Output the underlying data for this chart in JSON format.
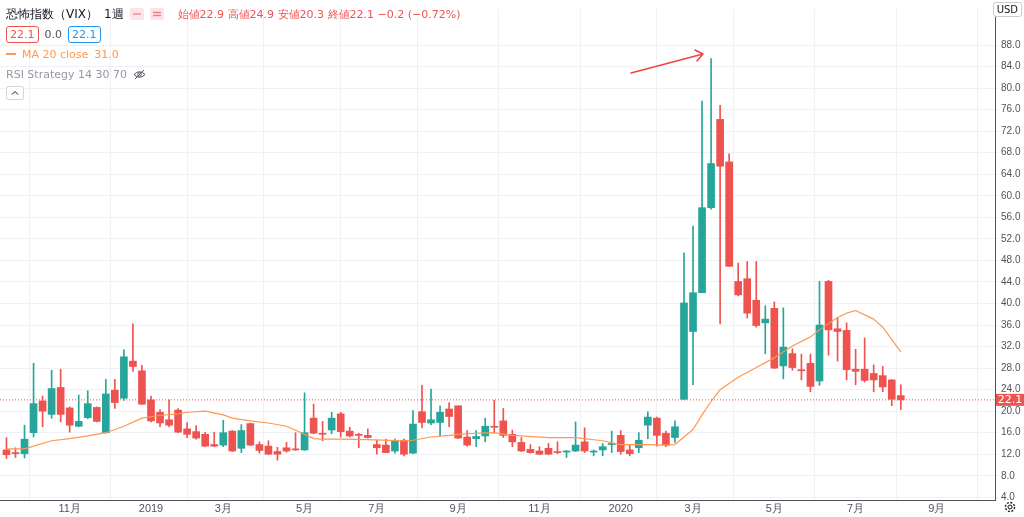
{
  "chart_data": {
    "type": "candlestick",
    "title": "恐怖指数（VIX）",
    "subtitle": "1週",
    "x": [
      "2018-09-17",
      "2018-09-24",
      "2018-10-01",
      "2018-10-08",
      "2018-10-15",
      "2018-10-22",
      "2018-10-29",
      "2018-11-05",
      "2018-11-12",
      "2018-11-19",
      "2018-11-26",
      "2018-12-03",
      "2018-12-10",
      "2018-12-17",
      "2018-12-24",
      "2018-12-31",
      "2019-01-07",
      "2019-01-14",
      "2019-01-21",
      "2019-01-28",
      "2019-02-04",
      "2019-02-11",
      "2019-02-18",
      "2019-02-25",
      "2019-03-04",
      "2019-03-11",
      "2019-03-18",
      "2019-03-25",
      "2019-04-01",
      "2019-04-08",
      "2019-04-15",
      "2019-04-22",
      "2019-04-29",
      "2019-05-06",
      "2019-05-13",
      "2019-05-20",
      "2019-05-27",
      "2019-06-03",
      "2019-06-10",
      "2019-06-17",
      "2019-06-24",
      "2019-07-01",
      "2019-07-08",
      "2019-07-15",
      "2019-07-22",
      "2019-07-29",
      "2019-08-05",
      "2019-08-12",
      "2019-08-19",
      "2019-08-26",
      "2019-09-02",
      "2019-09-09",
      "2019-09-16",
      "2019-09-23",
      "2019-09-30",
      "2019-10-07",
      "2019-10-14",
      "2019-10-21",
      "2019-10-28",
      "2019-11-04",
      "2019-11-11",
      "2019-11-18",
      "2019-11-25",
      "2019-12-02",
      "2019-12-09",
      "2019-12-16",
      "2019-12-23",
      "2019-12-30",
      "2020-01-06",
      "2020-01-13",
      "2020-01-20",
      "2020-01-27",
      "2020-02-03",
      "2020-02-10",
      "2020-02-17",
      "2020-02-24",
      "2020-03-02",
      "2020-03-09",
      "2020-03-16",
      "2020-03-23",
      "2020-03-30",
      "2020-04-06",
      "2020-04-13",
      "2020-04-20",
      "2020-04-27",
      "2020-05-04",
      "2020-05-11",
      "2020-05-18",
      "2020-05-25",
      "2020-06-01",
      "2020-06-08",
      "2020-06-15",
      "2020-06-22",
      "2020-06-29",
      "2020-07-06",
      "2020-07-13",
      "2020-07-20",
      "2020-07-27",
      "2020-08-03",
      "2020-08-10"
    ],
    "ohlc": [
      [
        12.8,
        15.1,
        11.2,
        11.9
      ],
      [
        12.3,
        13.2,
        11.4,
        12.1
      ],
      [
        12.1,
        17.4,
        11.3,
        14.8
      ],
      [
        16.0,
        28.9,
        15.2,
        21.4
      ],
      [
        21.9,
        22.8,
        17.1,
        20.0
      ],
      [
        19.4,
        27.6,
        18.7,
        24.2
      ],
      [
        24.4,
        27.8,
        18.0,
        19.4
      ],
      [
        20.6,
        20.8,
        16.1,
        17.4
      ],
      [
        17.2,
        23.0,
        17.1,
        18.1
      ],
      [
        18.8,
        23.8,
        18.6,
        21.4
      ],
      [
        20.7,
        20.8,
        18.0,
        18.1
      ],
      [
        16.0,
        25.9,
        15.9,
        23.2
      ],
      [
        23.9,
        25.9,
        20.5,
        21.6
      ],
      [
        22.4,
        31.4,
        22.0,
        30.1
      ],
      [
        29.3,
        36.2,
        27.4,
        28.3
      ],
      [
        27.5,
        28.5,
        21.2,
        21.3
      ],
      [
        22.1,
        22.8,
        18.0,
        18.2
      ],
      [
        19.8,
        20.3,
        17.1,
        17.8
      ],
      [
        18.4,
        22.1,
        17.1,
        17.4
      ],
      [
        20.2,
        20.5,
        16.0,
        16.1
      ],
      [
        16.7,
        17.9,
        15.1,
        15.7
      ],
      [
        16.2,
        17.3,
        14.8,
        15.0
      ],
      [
        15.7,
        16.1,
        13.4,
        13.5
      ],
      [
        13.8,
        16.1,
        13.4,
        13.5
      ],
      [
        13.7,
        18.3,
        13.4,
        16.0
      ],
      [
        16.3,
        16.4,
        12.5,
        12.6
      ],
      [
        13.1,
        17.5,
        12.3,
        16.4
      ],
      [
        17.7,
        17.8,
        13.6,
        13.7
      ],
      [
        13.8,
        14.3,
        12.2,
        12.7
      ],
      [
        13.5,
        14.5,
        11.9,
        12.0
      ],
      [
        12.5,
        13.3,
        10.9,
        12.0
      ],
      [
        13.2,
        14.2,
        12.4,
        12.6
      ],
      [
        13.0,
        16.0,
        12.7,
        12.8
      ],
      [
        12.8,
        23.4,
        12.7,
        16.0
      ],
      [
        18.7,
        21.3,
        15.8,
        15.9
      ],
      [
        15.9,
        18.1,
        14.5,
        15.7
      ],
      [
        16.5,
        19.8,
        15.8,
        18.7
      ],
      [
        19.5,
        19.8,
        15.2,
        16.2
      ],
      [
        16.3,
        17.0,
        15.2,
        15.4
      ],
      [
        15.7,
        15.9,
        13.2,
        15.5
      ],
      [
        15.5,
        16.7,
        15.0,
        15.1
      ],
      [
        13.8,
        14.6,
        12.0,
        13.2
      ],
      [
        13.7,
        14.8,
        12.3,
        12.3
      ],
      [
        12.6,
        14.8,
        12.2,
        14.5
      ],
      [
        14.6,
        14.8,
        11.7,
        12.0
      ],
      [
        12.2,
        20.1,
        12.1,
        17.6
      ],
      [
        19.9,
        24.8,
        16.9,
        17.9
      ],
      [
        17.8,
        24.1,
        17.5,
        18.4
      ],
      [
        17.9,
        21.0,
        15.4,
        19.8
      ],
      [
        20.4,
        21.6,
        17.1,
        19.0
      ],
      [
        21.0,
        21.0,
        14.9,
        15.0
      ],
      [
        15.2,
        16.4,
        13.5,
        13.7
      ],
      [
        14.9,
        16.4,
        13.4,
        15.3
      ],
      [
        15.4,
        18.7,
        14.3,
        17.2
      ],
      [
        17.2,
        22.0,
        15.9,
        17.0
      ],
      [
        18.2,
        20.5,
        15.1,
        15.5
      ],
      [
        15.7,
        16.5,
        13.4,
        14.3
      ],
      [
        14.2,
        15.1,
        12.5,
        12.6
      ],
      [
        12.9,
        13.8,
        12.2,
        12.3
      ],
      [
        12.6,
        13.4,
        11.9,
        12.0
      ],
      [
        13.1,
        14.0,
        11.9,
        12.0
      ],
      [
        12.4,
        14.3,
        12.1,
        12.3
      ],
      [
        12.4,
        12.7,
        11.4,
        12.6
      ],
      [
        12.6,
        18.0,
        12.5,
        13.7
      ],
      [
        14.3,
        16.9,
        12.3,
        12.6
      ],
      [
        12.4,
        12.8,
        11.7,
        12.6
      ],
      [
        12.8,
        14.0,
        11.7,
        13.4
      ],
      [
        13.8,
        16.3,
        12.3,
        14.0
      ],
      [
        15.5,
        16.4,
        12.0,
        12.5
      ],
      [
        12.8,
        13.7,
        11.7,
        12.1
      ],
      [
        13.2,
        16.0,
        12.3,
        14.6
      ],
      [
        17.4,
        19.9,
        14.9,
        18.9
      ],
      [
        18.7,
        18.9,
        13.5,
        15.5
      ],
      [
        15.9,
        16.3,
        13.4,
        13.7
      ],
      [
        15.1,
        18.2,
        14.2,
        17.1
      ],
      [
        22.2,
        49.4,
        22.2,
        40.1
      ],
      [
        34.8,
        54.4,
        24.9,
        42.0
      ],
      [
        42.0,
        77.6,
        42.0,
        57.8
      ],
      [
        57.8,
        85.5,
        57.5,
        66.0
      ],
      [
        74.2,
        76.8,
        36.2,
        65.5
      ],
      [
        66.3,
        67.8,
        46.9,
        46.9
      ],
      [
        44.1,
        47.5,
        41.4,
        41.6
      ],
      [
        44.6,
        47.8,
        37.3,
        38.2
      ],
      [
        40.6,
        47.8,
        35.6,
        35.9
      ],
      [
        36.4,
        39.6,
        30.7,
        37.1
      ],
      [
        39.1,
        40.3,
        27.9,
        28.0
      ],
      [
        28.4,
        39.2,
        26.0,
        31.9
      ],
      [
        30.7,
        31.6,
        27.6,
        28.1
      ],
      [
        27.7,
        30.6,
        25.8,
        27.5
      ],
      [
        28.9,
        30.6,
        23.6,
        24.6
      ],
      [
        25.6,
        44.1,
        24.8,
        36.0
      ],
      [
        44.1,
        44.3,
        30.4,
        35.1
      ],
      [
        35.3,
        37.3,
        29.3,
        34.8
      ],
      [
        35.0,
        36.4,
        25.8,
        27.7
      ],
      [
        27.8,
        31.5,
        24.9,
        27.4
      ],
      [
        27.8,
        33.6,
        25.4,
        25.7
      ],
      [
        27.0,
        28.6,
        23.6,
        25.8
      ],
      [
        26.6,
        28.3,
        23.6,
        24.5
      ],
      [
        25.8,
        25.9,
        21.0,
        22.2
      ],
      [
        22.9,
        24.9,
        20.3,
        22.1
      ]
    ],
    "colors": [
      "#ef5350",
      "#ef5350",
      "#26a69a",
      "#26a69a",
      "#ef5350",
      "#26a69a",
      "#ef5350",
      "#ef5350",
      "#26a69a",
      "#26a69a",
      "#ef5350",
      "#26a69a",
      "#ef5350",
      "#26a69a",
      "#ef5350",
      "#ef5350",
      "#ef5350",
      "#ef5350",
      "#ef5350",
      "#ef5350",
      "#ef5350",
      "#ef5350",
      "#ef5350",
      "#ef5350",
      "#26a69a",
      "#ef5350",
      "#26a69a",
      "#ef5350",
      "#ef5350",
      "#ef5350",
      "#ef5350",
      "#ef5350",
      "#ef5350",
      "#26a69a",
      "#ef5350",
      "#ef5350",
      "#26a69a",
      "#ef5350",
      "#ef5350",
      "#ef5350",
      "#ef5350",
      "#ef5350",
      "#ef5350",
      "#26a69a",
      "#ef5350",
      "#26a69a",
      "#ef5350",
      "#26a69a",
      "#26a69a",
      "#ef5350",
      "#ef5350",
      "#ef5350",
      "#26a69a",
      "#26a69a",
      "#ef5350",
      "#ef5350",
      "#ef5350",
      "#ef5350",
      "#ef5350",
      "#ef5350",
      "#ef5350",
      "#ef5350",
      "#26a69a",
      "#26a69a",
      "#ef5350",
      "#26a69a",
      "#26a69a",
      "#26a69a",
      "#ef5350",
      "#ef5350",
      "#26a69a",
      "#26a69a",
      "#ef5350",
      "#ef5350",
      "#26a69a",
      "#26a69a",
      "#26a69a",
      "#26a69a",
      "#26a69a",
      "#ef5350",
      "#ef5350",
      "#ef5350",
      "#ef5350",
      "#ef5350",
      "#26a69a",
      "#ef5350",
      "#26a69a",
      "#ef5350",
      "#ef5350",
      "#ef5350",
      "#26a69a",
      "#ef5350",
      "#ef5350",
      "#ef5350",
      "#ef5350",
      "#ef5350",
      "#ef5350",
      "#ef5350",
      "#ef5350",
      "#ef5350"
    ],
    "series": [
      {
        "type": "line",
        "name": "MA 20 close",
        "color": "#ff9850",
        "x": [
          "2018-09-17",
          "2018-10-01",
          "2018-10-08",
          "2018-10-22",
          "2018-11-05",
          "2018-11-19",
          "2018-12-03",
          "2018-12-17",
          "2018-12-31",
          "2019-01-14",
          "2019-01-28",
          "2019-02-04",
          "2019-02-18",
          "2019-03-04",
          "2019-03-11",
          "2019-03-25",
          "2019-04-08",
          "2019-04-22",
          "2019-05-06",
          "2019-05-13",
          "2019-05-20",
          "2019-06-03",
          "2019-06-24",
          "2019-07-22",
          "2019-07-29",
          "2019-08-12",
          "2019-08-26",
          "2019-09-02",
          "2019-09-16",
          "2019-09-30",
          "2019-10-14",
          "2019-11-11",
          "2019-12-02",
          "2019-12-23",
          "2020-01-06",
          "2020-01-27",
          "2020-02-10",
          "2020-02-17",
          "2020-02-24",
          "2020-03-02",
          "2020-03-09",
          "2020-03-16",
          "2020-03-23",
          "2020-04-06",
          "2020-04-20",
          "2020-05-04",
          "2020-05-18",
          "2020-06-01",
          "2020-06-08",
          "2020-06-22",
          "2020-06-29",
          "2020-07-06",
          "2020-07-20",
          "2020-07-27",
          "2020-08-10"
        ],
        "values": [
          13.0,
          13.0,
          13.5,
          14.5,
          14.9,
          15.4,
          16.0,
          17.2,
          18.7,
          19.2,
          19.5,
          19.8,
          20.0,
          19.3,
          18.7,
          18.2,
          17.8,
          17.2,
          15.7,
          14.9,
          14.8,
          14.8,
          14.7,
          14.5,
          14.6,
          15.2,
          15.5,
          15.7,
          15.9,
          16.0,
          15.5,
          15.1,
          15.1,
          14.5,
          13.8,
          13.8,
          13.7,
          13.8,
          15.2,
          16.6,
          19.3,
          21.8,
          24.0,
          26.3,
          28.1,
          29.9,
          32.1,
          33.8,
          35.1,
          37.4,
          38.2,
          38.7,
          37.1,
          35.6,
          31.0
        ]
      }
    ],
    "xlim": [
      "2018-09-12",
      "2020-10-22"
    ],
    "xticks": [
      {
        "value": "2018-11-05",
        "label": "11月"
      },
      {
        "value": "2019-01-07",
        "label": "2019"
      },
      {
        "value": "2019-03-04",
        "label": "3月"
      },
      {
        "value": "2019-05-06",
        "label": "5月"
      },
      {
        "value": "2019-07-01",
        "label": "7月"
      },
      {
        "value": "2019-09-02",
        "label": "9月"
      },
      {
        "value": "2019-11-04",
        "label": "11月"
      },
      {
        "value": "2020-01-06",
        "label": "2020"
      },
      {
        "value": "2020-03-02",
        "label": "3月"
      },
      {
        "value": "2020-05-04",
        "label": "5月"
      },
      {
        "value": "2020-07-06",
        "label": "7月"
      },
      {
        "value": "2020-09-07",
        "label": "9月"
      }
    ],
    "ylim": [
      3.5,
      94.7
    ],
    "yticks": [
      {
        "value": 4,
        "label": "4.0"
      },
      {
        "value": 8,
        "label": "8.0"
      },
      {
        "value": 12,
        "label": "12.0"
      },
      {
        "value": 16,
        "label": "16.0"
      },
      {
        "value": 20,
        "label": "20.0"
      },
      {
        "value": 24,
        "label": "24.0"
      },
      {
        "value": 28,
        "label": "28.0"
      },
      {
        "value": 32,
        "label": "32.0"
      },
      {
        "value": 36,
        "label": "36.0"
      },
      {
        "value": 40,
        "label": "40.0"
      },
      {
        "value": 44,
        "label": "44.0"
      },
      {
        "value": 48,
        "label": "48.0"
      },
      {
        "value": 52,
        "label": "52.0"
      },
      {
        "value": 56,
        "label": "56.0"
      },
      {
        "value": 60,
        "label": "60.0"
      },
      {
        "value": 64,
        "label": "64.0"
      },
      {
        "value": 68,
        "label": "68.0"
      },
      {
        "value": 72,
        "label": "72.0"
      },
      {
        "value": 76,
        "label": "76.0"
      },
      {
        "value": 80,
        "label": "80.0"
      },
      {
        "value": 84,
        "label": "84.0"
      },
      {
        "value": 88,
        "label": "88.0"
      }
    ],
    "ref_lines": [
      {
        "axis": "y",
        "value": 22.1,
        "label": "22.1",
        "color": "#ef5350",
        "line_style": "dotted"
      }
    ],
    "annotations": [
      "始値22.9 高値24.9 安値20.3 終値22.1 −0.2 (−0.72%)",
      "22.1",
      "0.0",
      "22.1",
      "31.0",
      "RSI Strategy 14 30 70",
      "USD"
    ],
    "legend": "top left",
    "grid": true
  }
}
